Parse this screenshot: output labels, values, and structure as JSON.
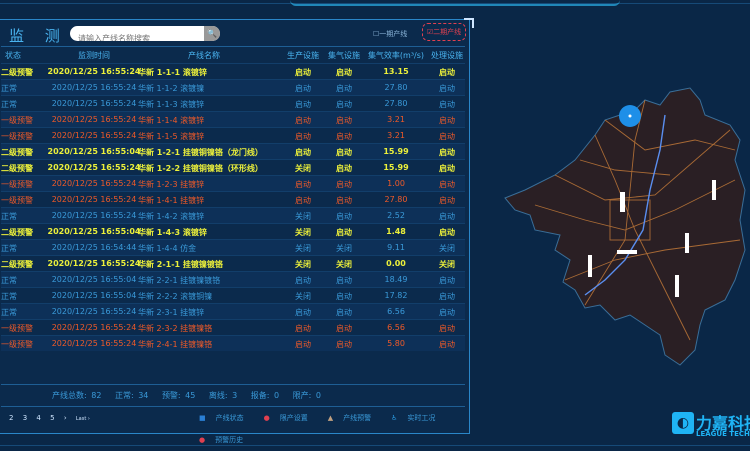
{
  "header": {
    "title": "监 测",
    "search_placeholder": "请输入产线名称搜索",
    "phase1": "一期产线",
    "phase2": "二期产线"
  },
  "columns": [
    "状态",
    "监测时间",
    "产线名称",
    "生产设施",
    "集气设施",
    "集气效率(m³/s)",
    "处理设施"
  ],
  "rows": [
    {
      "status": "二级预警",
      "level": 1,
      "time": "2020/12/25 16:55:24",
      "name": "华新 1-1-1 滚镀锌",
      "prod": "启动",
      "gas": "启动",
      "eff": "13.15",
      "treat": "启动"
    },
    {
      "status": "正常",
      "level": 0,
      "time": "2020/12/25 16:55:24",
      "name": "华新 1-1-2 滚镀镍",
      "prod": "启动",
      "gas": "启动",
      "eff": "27.80",
      "treat": "启动"
    },
    {
      "status": "正常",
      "level": 0,
      "time": "2020/12/25 16:55:24",
      "name": "华新 1-1-3 滚镀锌",
      "prod": "启动",
      "gas": "启动",
      "eff": "27.80",
      "treat": "启动"
    },
    {
      "status": "一级预警",
      "level": 2,
      "time": "2020/12/25 16:55:24",
      "name": "华新 1-1-4 滚镀锌",
      "prod": "启动",
      "gas": "启动",
      "eff": "3.21",
      "treat": "启动"
    },
    {
      "status": "一级预警",
      "level": 2,
      "time": "2020/12/25 16:55:24",
      "name": "华新 1-1-5 滚镀锌",
      "prod": "启动",
      "gas": "启动",
      "eff": "3.21",
      "treat": "启动"
    },
    {
      "status": "二级预警",
      "level": 1,
      "time": "2020/12/25 16:55:04",
      "name": "华新 1-2-1 挂镀铜镍铬（龙门线）",
      "prod": "启动",
      "gas": "启动",
      "eff": "15.99",
      "treat": "启动"
    },
    {
      "status": "二级预警",
      "level": 1,
      "time": "2020/12/25 16:55:24",
      "name": "华新 1-2-2 挂镀铜镍铬（环形线）",
      "prod": "关闭",
      "gas": "启动",
      "eff": "15.99",
      "treat": "启动"
    },
    {
      "status": "一级预警",
      "level": 2,
      "time": "2020/12/25 16:55:24",
      "name": "华新 1-2-3 挂镀锌",
      "prod": "启动",
      "gas": "启动",
      "eff": "1.00",
      "treat": "启动"
    },
    {
      "status": "一级预警",
      "level": 2,
      "time": "2020/12/25 16:55:24",
      "name": "华新 1-4-1 挂镀锌",
      "prod": "启动",
      "gas": "启动",
      "eff": "27.80",
      "treat": "启动"
    },
    {
      "status": "正常",
      "level": 0,
      "time": "2020/12/25 16:55:24",
      "name": "华新 1-4-2 滚镀锌",
      "prod": "关闭",
      "gas": "启动",
      "eff": "2.52",
      "treat": "启动"
    },
    {
      "status": "二级预警",
      "level": 1,
      "time": "2020/12/25 16:55:04",
      "name": "华新 1-4-3 滚镀锌",
      "prod": "关闭",
      "gas": "启动",
      "eff": "1.48",
      "treat": "启动"
    },
    {
      "status": "正常",
      "level": 0,
      "time": "2020/12/25 16:54:44",
      "name": "华新 1-4-4 仿金",
      "prod": "关闭",
      "gas": "关闭",
      "eff": "9.11",
      "treat": "关闭"
    },
    {
      "status": "二级预警",
      "level": 1,
      "time": "2020/12/25 16:55:24",
      "name": "华新 2-1-1 挂镀镍镀铬",
      "prod": "关闭",
      "gas": "关闭",
      "eff": "0.00",
      "treat": "关闭"
    },
    {
      "status": "正常",
      "level": 0,
      "time": "2020/12/25 16:55:04",
      "name": "华新 2-2-1 挂镀镍镀铬",
      "prod": "启动",
      "gas": "启动",
      "eff": "18.49",
      "treat": "启动"
    },
    {
      "status": "正常",
      "level": 0,
      "time": "2020/12/25 16:55:04",
      "name": "华新 2-2-2 滚镀铜镍",
      "prod": "关闭",
      "gas": "启动",
      "eff": "17.82",
      "treat": "启动"
    },
    {
      "status": "正常",
      "level": 0,
      "time": "2020/12/25 16:55:24",
      "name": "华新 2-3-1 挂镀锌",
      "prod": "启动",
      "gas": "启动",
      "eff": "6.56",
      "treat": "启动"
    },
    {
      "status": "一级预警",
      "level": 2,
      "time": "2020/12/25 16:55:24",
      "name": "华新 2-3-2 挂镀镍铬",
      "prod": "启动",
      "gas": "启动",
      "eff": "6.56",
      "treat": "启动"
    },
    {
      "status": "一级预警",
      "level": 2,
      "time": "2020/12/25 16:55:24",
      "name": "华新 2-4-1 挂镀镍铬",
      "prod": "启动",
      "gas": "启动",
      "eff": "5.80",
      "treat": "启动"
    }
  ],
  "stats": {
    "total": "产线总数: 82",
    "normal": "正常: 34",
    "warning": "预警: 45",
    "offline": "离线: 3",
    "standby": "报备: 0",
    "limited": "限产: 0"
  },
  "pagination": [
    "2",
    "3",
    "4",
    "5",
    "›",
    "Last ›"
  ],
  "legend": [
    {
      "icon": "status-square-icon",
      "glyph": "■",
      "color": "#2a7fd4",
      "label": "产线状态"
    },
    {
      "icon": "limit-circle-icon",
      "glyph": "●",
      "color": "#e04050",
      "label": "限产设置"
    },
    {
      "icon": "warning-triangle-icon",
      "glyph": "▲",
      "color": "#c0a080",
      "label": "产线预警"
    },
    {
      "icon": "realtime-person-icon",
      "glyph": "♿",
      "color": "#2a9ae0",
      "label": "实时工况"
    },
    {
      "icon": "history-pin-icon",
      "glyph": "●",
      "color": "#e04050",
      "label": "预警历史"
    }
  ],
  "logo": {
    "cn": "力嘉科技",
    "en": "LEAGUE TECH"
  },
  "colors": {
    "normal": "#3a9ad9",
    "level2": "#ecf03a",
    "level1": "#f05a28",
    "accent": "#2ab0e8"
  }
}
